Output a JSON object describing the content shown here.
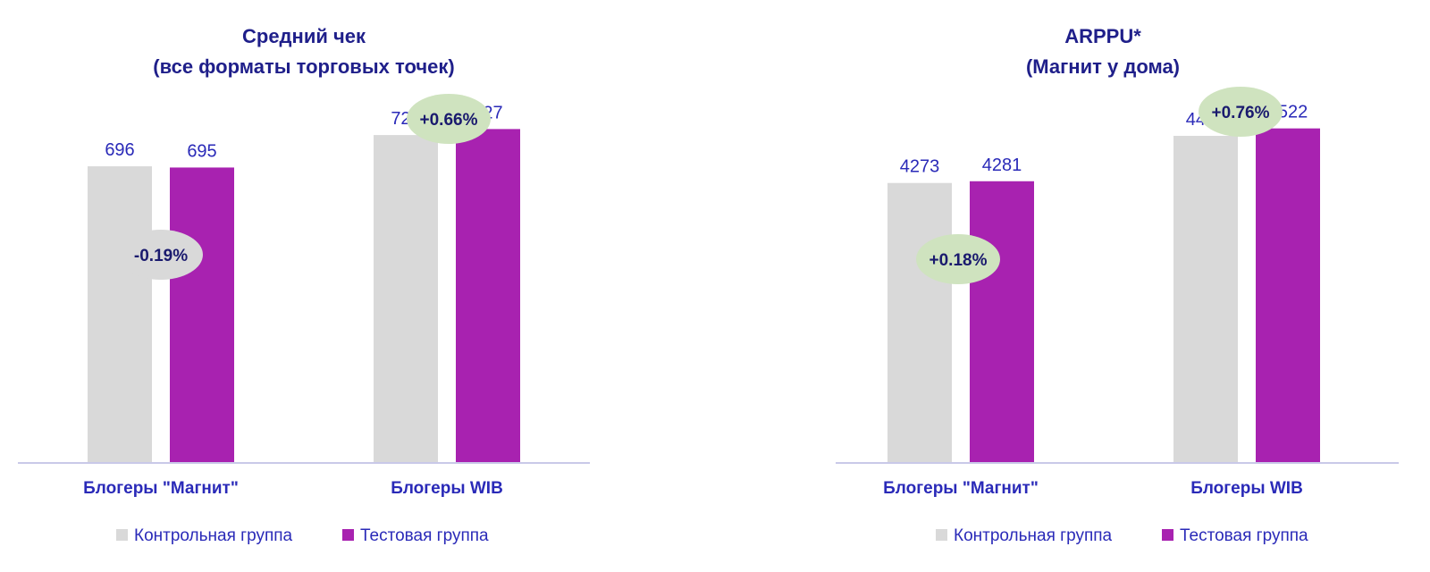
{
  "colors": {
    "control": "#d9d9d9",
    "test": "#a822b0",
    "axis": "#c9c9e8",
    "badge_positive": "#cfe3bf",
    "badge_negative": "#d9d9d9",
    "text_blue": "#2a2ab8",
    "title_blue": "#1f1f8a"
  },
  "chart_data": [
    {
      "type": "bar",
      "title": "Средний чек",
      "subtitle": "(все форматы торговых точек)",
      "categories": [
        "Блогеры \"Магнит\"",
        "Блогеры WIB"
      ],
      "series": [
        {
          "name": "Контрольная группа",
          "values": [
            696,
            722
          ]
        },
        {
          "name": "Тестовая группа",
          "values": [
            695,
            727
          ]
        }
      ],
      "annotations": [
        "-0.19%",
        "+0.66%"
      ],
      "ylim": [
        450,
        760
      ],
      "legend_position": "bottom",
      "grid": false
    },
    {
      "type": "bar",
      "title": "ARPPU*",
      "subtitle": "(Магнит у дома)",
      "categories": [
        "Блогеры \"Магнит\"",
        "Блогеры WIB"
      ],
      "series": [
        {
          "name": "Контрольная группа",
          "values": [
            4273,
            4488
          ]
        },
        {
          "name": "Тестовая группа",
          "values": [
            4281,
            4522
          ]
        }
      ],
      "annotations": [
        "+0.18%",
        "+0.76%"
      ],
      "ylim": [
        3000,
        4700
      ],
      "legend_position": "bottom",
      "grid": false
    }
  ]
}
